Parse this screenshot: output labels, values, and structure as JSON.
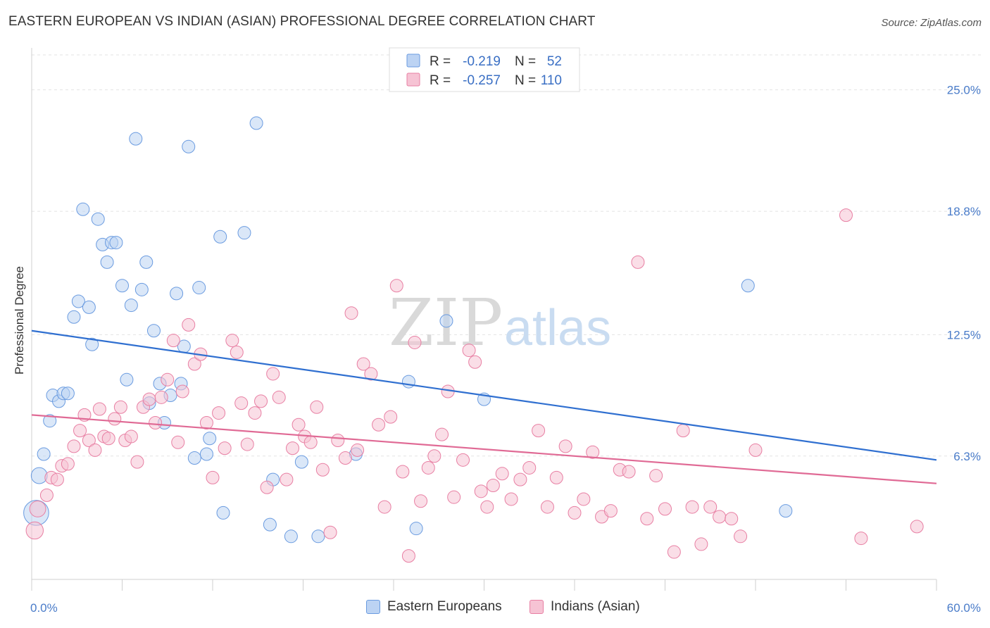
{
  "title": "EASTERN EUROPEAN VS INDIAN (ASIAN) PROFESSIONAL DEGREE CORRELATION CHART",
  "source": "Source: ZipAtlas.com",
  "watermark": {
    "zip": "ZIP",
    "atlas": "atlas"
  },
  "chart_data": {
    "type": "scatter",
    "title": "EASTERN EUROPEAN VS INDIAN (ASIAN) PROFESSIONAL DEGREE CORRELATION CHART",
    "xlabel": "",
    "ylabel": "Professional Degree",
    "xlim": [
      0,
      60
    ],
    "ylim": [
      0,
      27
    ],
    "y_ticks": [
      6.3,
      12.5,
      18.8,
      25.0
    ],
    "y_tick_labels": [
      "6.3%",
      "12.5%",
      "18.8%",
      "25.0%"
    ],
    "x_tick_labels": {
      "min": "0.0%",
      "max": "60.0%"
    },
    "grid": true,
    "legend_placement": "top-center",
    "legend": [
      {
        "r_label": "R =",
        "r_value": "-0.219",
        "n_label": "N =",
        "n_value": "52"
      },
      {
        "r_label": "R =",
        "r_value": "-0.257",
        "n_label": "N =",
        "n_value": "110"
      }
    ],
    "series": [
      {
        "name": "Eastern Europeans",
        "color": "#6a9be0",
        "fill": "#bcd3f3",
        "trend": {
          "x0": 0,
          "y0": 12.7,
          "x1": 60,
          "y1": 6.1
        },
        "points": [
          [
            0.3,
            3.4,
            22
          ],
          [
            0.5,
            5.3,
            14
          ],
          [
            0.8,
            6.4,
            11
          ],
          [
            1.2,
            8.1,
            11
          ],
          [
            1.4,
            9.4,
            11
          ],
          [
            1.8,
            9.1,
            11
          ],
          [
            2.1,
            9.5,
            11
          ],
          [
            2.4,
            9.5,
            11
          ],
          [
            2.8,
            13.4,
            11
          ],
          [
            3.1,
            14.2,
            11
          ],
          [
            3.4,
            18.9,
            11
          ],
          [
            3.8,
            13.9,
            11
          ],
          [
            4.0,
            12.0,
            11
          ],
          [
            4.4,
            18.4,
            11
          ],
          [
            4.7,
            17.1,
            11
          ],
          [
            5.0,
            16.2,
            11
          ],
          [
            5.3,
            17.2,
            11
          ],
          [
            5.6,
            17.2,
            11
          ],
          [
            6.0,
            15.0,
            11
          ],
          [
            6.3,
            10.2,
            11
          ],
          [
            6.6,
            14.0,
            11
          ],
          [
            6.9,
            22.5,
            11
          ],
          [
            7.3,
            14.8,
            11
          ],
          [
            7.6,
            16.2,
            11
          ],
          [
            7.8,
            9.0,
            11
          ],
          [
            8.1,
            12.7,
            11
          ],
          [
            8.5,
            10.0,
            11
          ],
          [
            8.8,
            8.0,
            11
          ],
          [
            9.2,
            9.4,
            11
          ],
          [
            9.6,
            14.6,
            11
          ],
          [
            9.9,
            10.0,
            11
          ],
          [
            10.1,
            11.9,
            11
          ],
          [
            10.4,
            22.1,
            11
          ],
          [
            10.8,
            6.2,
            11
          ],
          [
            11.1,
            14.9,
            11
          ],
          [
            11.6,
            6.4,
            11
          ],
          [
            11.8,
            7.2,
            11
          ],
          [
            12.5,
            17.5,
            11
          ],
          [
            12.7,
            3.4,
            11
          ],
          [
            14.1,
            17.7,
            11
          ],
          [
            14.9,
            23.3,
            11
          ],
          [
            15.8,
            2.8,
            11
          ],
          [
            16.0,
            5.1,
            11
          ],
          [
            17.2,
            2.2,
            11
          ],
          [
            17.9,
            6.0,
            11
          ],
          [
            19.0,
            2.2,
            11
          ],
          [
            21.5,
            6.4,
            11
          ],
          [
            25.0,
            10.1,
            11
          ],
          [
            25.5,
            2.6,
            11
          ],
          [
            27.5,
            13.2,
            11
          ],
          [
            30.0,
            9.2,
            11
          ],
          [
            47.5,
            15.0,
            11
          ],
          [
            50.0,
            3.5,
            11
          ]
        ]
      },
      {
        "name": "Indians (Asian)",
        "color": "#e87fa3",
        "fill": "#f6c3d4",
        "trend": {
          "x0": 0,
          "y0": 8.4,
          "x1": 60,
          "y1": 4.9
        },
        "points": [
          [
            0.2,
            2.5,
            15
          ],
          [
            0.4,
            3.6,
            14
          ],
          [
            1.0,
            4.3,
            11
          ],
          [
            1.3,
            5.2,
            11
          ],
          [
            1.7,
            5.1,
            11
          ],
          [
            2.0,
            5.8,
            11
          ],
          [
            2.4,
            5.9,
            11
          ],
          [
            2.8,
            6.8,
            11
          ],
          [
            3.2,
            7.6,
            11
          ],
          [
            3.5,
            8.4,
            11
          ],
          [
            3.8,
            7.1,
            11
          ],
          [
            4.2,
            6.6,
            11
          ],
          [
            4.5,
            8.7,
            11
          ],
          [
            4.8,
            7.3,
            11
          ],
          [
            5.1,
            7.2,
            11
          ],
          [
            5.5,
            8.2,
            11
          ],
          [
            5.9,
            8.8,
            11
          ],
          [
            6.2,
            7.1,
            11
          ],
          [
            6.6,
            7.3,
            11
          ],
          [
            7.0,
            6.0,
            11
          ],
          [
            7.4,
            8.8,
            11
          ],
          [
            7.8,
            9.2,
            11
          ],
          [
            8.2,
            8.0,
            11
          ],
          [
            8.6,
            9.3,
            11
          ],
          [
            9.0,
            10.2,
            11
          ],
          [
            9.4,
            12.2,
            11
          ],
          [
            9.7,
            7.0,
            11
          ],
          [
            10.0,
            9.6,
            11
          ],
          [
            10.4,
            13.0,
            11
          ],
          [
            10.8,
            11.0,
            11
          ],
          [
            11.2,
            11.5,
            11
          ],
          [
            11.6,
            8.0,
            11
          ],
          [
            12.0,
            5.2,
            11
          ],
          [
            12.4,
            8.5,
            11
          ],
          [
            12.8,
            6.7,
            11
          ],
          [
            13.3,
            12.2,
            11
          ],
          [
            13.6,
            11.6,
            11
          ],
          [
            13.9,
            9.0,
            11
          ],
          [
            14.3,
            6.9,
            11
          ],
          [
            14.8,
            8.5,
            11
          ],
          [
            15.2,
            9.1,
            11
          ],
          [
            15.6,
            4.7,
            11
          ],
          [
            16.0,
            10.5,
            11
          ],
          [
            16.4,
            9.3,
            11
          ],
          [
            16.9,
            5.1,
            11
          ],
          [
            17.3,
            6.7,
            11
          ],
          [
            17.7,
            7.9,
            11
          ],
          [
            18.1,
            7.3,
            11
          ],
          [
            18.5,
            7.0,
            11
          ],
          [
            18.9,
            8.8,
            11
          ],
          [
            19.3,
            5.6,
            11
          ],
          [
            19.8,
            2.4,
            11
          ],
          [
            20.3,
            7.1,
            11
          ],
          [
            20.8,
            6.2,
            11
          ],
          [
            21.2,
            13.6,
            11
          ],
          [
            21.6,
            6.6,
            11
          ],
          [
            22.0,
            11.0,
            11
          ],
          [
            22.5,
            10.5,
            11
          ],
          [
            23.0,
            7.9,
            11
          ],
          [
            23.4,
            3.7,
            11
          ],
          [
            23.8,
            8.3,
            11
          ],
          [
            24.2,
            15.0,
            11
          ],
          [
            24.6,
            5.5,
            11
          ],
          [
            25.0,
            1.2,
            11
          ],
          [
            25.4,
            12.1,
            11
          ],
          [
            25.8,
            4.0,
            11
          ],
          [
            26.3,
            5.7,
            11
          ],
          [
            26.7,
            6.3,
            11
          ],
          [
            27.2,
            7.4,
            11
          ],
          [
            27.6,
            9.6,
            11
          ],
          [
            28.0,
            4.2,
            11
          ],
          [
            28.6,
            6.1,
            11
          ],
          [
            29.0,
            11.7,
            11
          ],
          [
            29.4,
            11.1,
            11
          ],
          [
            29.8,
            4.5,
            11
          ],
          [
            30.2,
            3.7,
            11
          ],
          [
            30.6,
            4.8,
            11
          ],
          [
            31.2,
            5.4,
            11
          ],
          [
            31.8,
            4.1,
            11
          ],
          [
            32.4,
            5.1,
            11
          ],
          [
            33.0,
            5.7,
            11
          ],
          [
            33.6,
            7.6,
            11
          ],
          [
            34.2,
            3.7,
            11
          ],
          [
            34.8,
            5.2,
            11
          ],
          [
            35.4,
            6.8,
            11
          ],
          [
            36.0,
            3.4,
            11
          ],
          [
            36.6,
            4.1,
            11
          ],
          [
            37.2,
            6.5,
            11
          ],
          [
            37.8,
            3.2,
            11
          ],
          [
            38.4,
            3.5,
            11
          ],
          [
            39.0,
            5.6,
            11
          ],
          [
            39.6,
            5.5,
            11
          ],
          [
            40.2,
            16.2,
            11
          ],
          [
            40.8,
            3.1,
            11
          ],
          [
            41.4,
            5.3,
            11
          ],
          [
            42.0,
            3.6,
            11
          ],
          [
            42.6,
            1.4,
            11
          ],
          [
            43.2,
            7.6,
            11
          ],
          [
            43.8,
            3.7,
            11
          ],
          [
            44.4,
            1.8,
            11
          ],
          [
            45.0,
            3.7,
            11
          ],
          [
            45.6,
            3.2,
            11
          ],
          [
            46.4,
            3.1,
            11
          ],
          [
            47.0,
            2.2,
            11
          ],
          [
            48.0,
            6.6,
            11
          ],
          [
            54.0,
            18.6,
            11
          ],
          [
            55.0,
            2.1,
            11
          ],
          [
            58.7,
            2.7,
            11
          ]
        ]
      }
    ]
  }
}
